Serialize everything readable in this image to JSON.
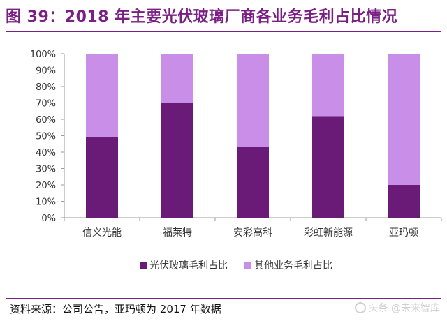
{
  "title": "图 39：2018 年主要光伏玻璃厂商各业务毛利占比情况",
  "source": "资料来源：公司公告，亚玛顿为 2017 年数据",
  "watermark": {
    "text": "头条 @未来智库",
    "icon": "chat-bubble-icon"
  },
  "colors": {
    "accent": "#7a1f84",
    "series1": "#6a1b78",
    "series2": "#c88ee8"
  },
  "chart_data": {
    "type": "bar",
    "stacked": true,
    "categories": [
      "信义光能",
      "福莱特",
      "安彩高科",
      "彩虹新能源",
      "亚玛顿"
    ],
    "series": [
      {
        "name": "光伏玻璃毛利占比",
        "values": [
          49,
          70,
          43,
          62,
          20
        ]
      },
      {
        "name": "其他业务毛利占比",
        "values": [
          51,
          30,
          57,
          38,
          80
        ]
      }
    ],
    "yticks": [
      "0%",
      "10%",
      "20%",
      "30%",
      "40%",
      "50%",
      "60%",
      "70%",
      "80%",
      "90%",
      "100%"
    ],
    "ylim": [
      0,
      100
    ],
    "grid": false,
    "legend_position": "bottom-center"
  }
}
